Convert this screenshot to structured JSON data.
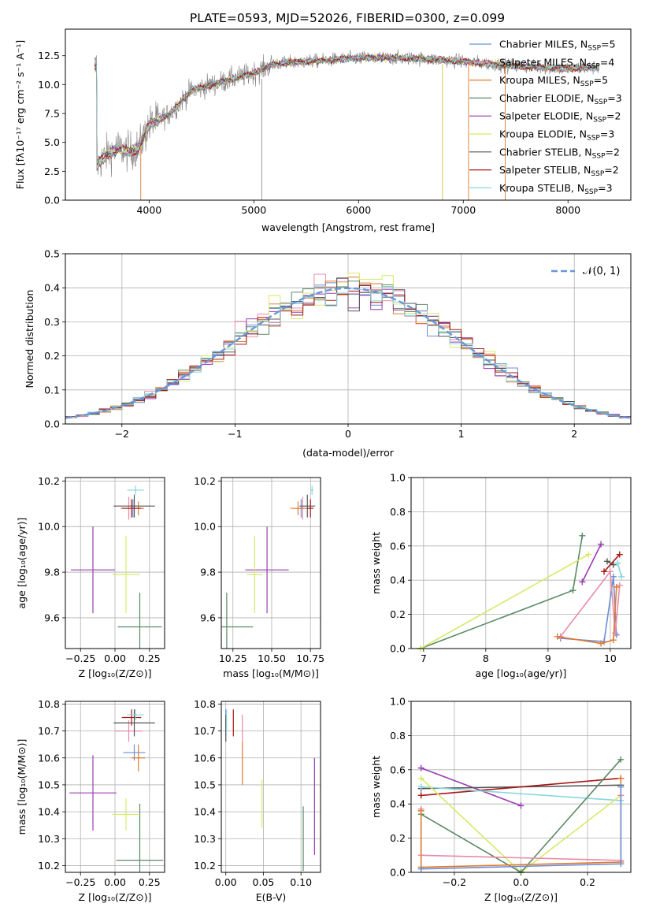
{
  "title": "PLATE=0593, MJD=52026, FIBERID=0300, z=0.099",
  "colors": {
    "Chabrier MILES": "#6b8fd6",
    "Salpeter MILES": "#e88aa8",
    "Kroupa MILES": "#e07a2e",
    "Chabrier ELODIE": "#5a8a66",
    "Salpeter ELODIE": "#9b3db3",
    "Kroupa ELODIE": "#d8e86a",
    "Chabrier STELIB": "#555555",
    "Salpeter STELIB": "#a81818",
    "Kroupa STELIB": "#86d6dc",
    "data": "#808080",
    "gaussian": "#6a96dc"
  },
  "chart_data": [
    {
      "id": "spectrum",
      "type": "line",
      "xlabel": "wavelength [Angstrom, rest frame]",
      "ylabel": "Flux [fλ10⁻¹⁷ erg cm⁻² s⁻¹ A⁻¹]",
      "xlim": [
        3200,
        8600
      ],
      "ylim": [
        0,
        14.8
      ],
      "xticks": [
        "4000",
        "5000",
        "6000",
        "7000",
        "8000"
      ],
      "yticks": [
        "0.0",
        "2.5",
        "5.0",
        "7.5",
        "10.0",
        "12.5"
      ],
      "grid": false,
      "legend_position": "upper right",
      "legend": [
        {
          "label": "Chabrier MILES",
          "sub": "5"
        },
        {
          "label": "Salpeter MILES",
          "sub": "4"
        },
        {
          "label": "Kroupa MILES",
          "sub": "5"
        },
        {
          "label": "Chabrier ELODIE",
          "sub": "3"
        },
        {
          "label": "Salpeter ELODIE",
          "sub": "2"
        },
        {
          "label": "Kroupa ELODIE",
          "sub": "3"
        },
        {
          "label": "Chabrier STELIB",
          "sub": "2"
        },
        {
          "label": "Salpeter STELIB",
          "sub": "2"
        },
        {
          "label": "Kroupa STELIB",
          "sub": "3"
        }
      ],
      "continuum": [
        [
          3500,
          3.0
        ],
        [
          3600,
          4.0
        ],
        [
          3700,
          4.5
        ],
        [
          3800,
          4.2
        ],
        [
          3900,
          4.5
        ],
        [
          4000,
          6.5
        ],
        [
          4200,
          7.5
        ],
        [
          4400,
          9.5
        ],
        [
          4600,
          10.0
        ],
        [
          4800,
          10.5
        ],
        [
          5000,
          11.0
        ],
        [
          5200,
          11.8
        ],
        [
          5500,
          12.0
        ],
        [
          6000,
          12.3
        ],
        [
          6500,
          12.3
        ],
        [
          7000,
          12.0
        ],
        [
          7500,
          11.6
        ],
        [
          8000,
          11.4
        ],
        [
          8300,
          11.5
        ]
      ],
      "spikes": [
        {
          "x": 7400,
          "from": 0,
          "to": 12.0
        },
        {
          "x": 7050,
          "from": 0,
          "to": 12.0
        },
        {
          "x": 6800,
          "from": 0,
          "to": 11.8
        },
        {
          "x": 3920,
          "from": 0,
          "to": 4.5
        }
      ]
    },
    {
      "id": "residuals",
      "type": "histogram",
      "xlabel": "(data-model)/error",
      "ylabel": "Normed distribution",
      "xlim": [
        -2.5,
        2.5
      ],
      "ylim": [
        0,
        0.5
      ],
      "xticks": [
        "−2",
        "−1",
        "0",
        "1",
        "2"
      ],
      "yticks": [
        "0.0",
        "0.1",
        "0.2",
        "0.3",
        "0.4",
        "0.5"
      ],
      "grid": true,
      "legend_position": "upper right",
      "legend": [
        "N(0,1)"
      ],
      "bins": 50,
      "gaussian": {
        "mean": 0,
        "sigma": 1
      },
      "series": [
        {
          "name": "Chabrier MILES"
        },
        {
          "name": "Salpeter MILES"
        },
        {
          "name": "Kroupa MILES"
        },
        {
          "name": "Chabrier ELODIE"
        },
        {
          "name": "Salpeter ELODIE"
        },
        {
          "name": "Kroupa ELODIE"
        },
        {
          "name": "Chabrier STELIB"
        },
        {
          "name": "Salpeter STELIB"
        },
        {
          "name": "Kroupa STELIB"
        }
      ]
    },
    {
      "id": "age_vs_Z",
      "type": "scatter",
      "xlabel": "Z [log₁₀(Z/Z⊙)]",
      "ylabel": "age  [log₁₀(age/yr)]",
      "xlim": [
        -0.36,
        0.36
      ],
      "ylim": [
        9.465,
        10.215
      ],
      "xticks": [
        {
          "v": -0.25,
          "t": "−0.25"
        },
        {
          "v": 0,
          "t": "0.00"
        },
        {
          "v": 0.25,
          "t": "0.25"
        }
      ],
      "yticks": [
        {
          "v": 9.6,
          "t": "9.6"
        },
        {
          "v": 9.8,
          "t": "9.8"
        },
        {
          "v": 10.0,
          "t": "10.0"
        },
        {
          "v": 10.2,
          "t": "10.2"
        }
      ],
      "grid": true,
      "points": [
        {
          "s": "Chabrier MILES",
          "x": 0.13,
          "y": 10.08,
          "ex": 0.07,
          "ey": 0.04
        },
        {
          "s": "Salpeter MILES",
          "x": 0.1,
          "y": 10.08,
          "ex": 0.06,
          "ey": 0.05
        },
        {
          "s": "Kroupa MILES",
          "x": 0.17,
          "y": 10.08,
          "ex": 0.04,
          "ey": 0.03
        },
        {
          "s": "Chabrier ELODIE",
          "x": 0.18,
          "y": 9.56,
          "ex": 0.16,
          "ey": 0.15
        },
        {
          "s": "Salpeter ELODIE",
          "x": -0.16,
          "y": 9.81,
          "ex": 0.16,
          "ey": 0.19
        },
        {
          "s": "Kroupa ELODIE",
          "x": 0.08,
          "y": 9.79,
          "ex": 0.1,
          "ey": 0.17
        },
        {
          "s": "Chabrier STELIB",
          "x": 0.14,
          "y": 10.09,
          "ex": 0.15,
          "ey": 0.05
        },
        {
          "s": "Salpeter STELIB",
          "x": 0.12,
          "y": 10.08,
          "ex": 0.07,
          "ey": 0.04
        },
        {
          "s": "Kroupa STELIB",
          "x": 0.15,
          "y": 10.16,
          "ex": 0.06,
          "ey": 0.02
        }
      ]
    },
    {
      "id": "age_vs_mass",
      "type": "scatter",
      "xlabel": "mass [log₁₀(M/M⊙)]",
      "ylabel": "",
      "xlim": [
        10.175,
        10.815
      ],
      "ylim": [
        9.465,
        10.215
      ],
      "xticks": [
        {
          "v": 10.25,
          "t": "10.25"
        },
        {
          "v": 10.5,
          "t": "10.50"
        },
        {
          "v": 10.75,
          "t": "10.75"
        }
      ],
      "yticks": [
        {
          "v": 9.6,
          "t": "9.6"
        },
        {
          "v": 9.8,
          "t": "9.8"
        },
        {
          "v": 10.0,
          "t": "10.0"
        },
        {
          "v": 10.2,
          "t": "10.2"
        }
      ],
      "grid": true,
      "points": [
        {
          "s": "Chabrier MILES",
          "x": 10.69,
          "y": 10.08,
          "ex": 0.02,
          "ey": 0.04
        },
        {
          "s": "Salpeter MILES",
          "x": 10.7,
          "y": 10.08,
          "ex": 0.05,
          "ey": 0.05
        },
        {
          "s": "Kroupa MILES",
          "x": 10.67,
          "y": 10.08,
          "ex": 0.05,
          "ey": 0.03
        },
        {
          "s": "Chabrier ELODIE",
          "x": 10.21,
          "y": 9.56,
          "ex": 0.17,
          "ey": 0.15
        },
        {
          "s": "Salpeter ELODIE",
          "x": 10.47,
          "y": 9.81,
          "ex": 0.14,
          "ey": 0.19
        },
        {
          "s": "Kroupa ELODIE",
          "x": 10.39,
          "y": 9.79,
          "ex": 0.05,
          "ey": 0.17
        },
        {
          "s": "Chabrier STELIB",
          "x": 10.73,
          "y": 10.09,
          "ex": 0.05,
          "ey": 0.05
        },
        {
          "s": "Salpeter STELIB",
          "x": 10.75,
          "y": 10.08,
          "ex": 0.02,
          "ey": 0.04
        },
        {
          "s": "Kroupa STELIB",
          "x": 10.76,
          "y": 10.16,
          "ex": 0.01,
          "ey": 0.02
        }
      ]
    },
    {
      "id": "weight_vs_age",
      "type": "line",
      "xlabel": "age  [log₁₀(age/yr)]",
      "ylabel": "mass weight",
      "xlim": [
        6.8,
        10.33
      ],
      "ylim": [
        0,
        1
      ],
      "xticks": [
        {
          "v": 7,
          "t": "7"
        },
        {
          "v": 8,
          "t": "8"
        },
        {
          "v": 9,
          "t": "9"
        },
        {
          "v": 10,
          "t": "10"
        }
      ],
      "yticks": [
        {
          "v": 0,
          "t": "0.0"
        },
        {
          "v": 0.2,
          "t": "0.2"
        },
        {
          "v": 0.4,
          "t": "0.4"
        },
        {
          "v": 0.6,
          "t": "0.6"
        },
        {
          "v": 0.8,
          "t": "0.8"
        },
        {
          "v": 1,
          "t": "1.0"
        }
      ],
      "grid": true,
      "series": [
        {
          "name": "Chabrier ELODIE",
          "points": [
            [
              6.95,
              0.0
            ],
            [
              9.4,
              0.34
            ],
            [
              9.55,
              0.66
            ]
          ]
        },
        {
          "name": "Kroupa ELODIE",
          "points": [
            [
              6.95,
              0.0
            ],
            [
              9.65,
              0.55
            ]
          ]
        },
        {
          "name": "Salpeter ELODIE",
          "points": [
            [
              9.55,
              0.39
            ],
            [
              9.85,
              0.61
            ]
          ]
        },
        {
          "name": "Chabrier MILES",
          "points": [
            [
              9.2,
              0.06
            ],
            [
              9.9,
              0.04
            ],
            [
              10.05,
              0.42
            ],
            [
              10.1,
              0.08
            ]
          ]
        },
        {
          "name": "Salpeter MILES",
          "points": [
            [
              9.2,
              0.07
            ],
            [
              10.0,
              0.45
            ],
            [
              10.08,
              0.09
            ],
            [
              10.15,
              0.37
            ]
          ]
        },
        {
          "name": "Kroupa MILES",
          "points": [
            [
              9.15,
              0.07
            ],
            [
              9.85,
              0.03
            ],
            [
              10.05,
              0.05
            ],
            [
              10.1,
              0.36
            ]
          ]
        },
        {
          "name": "Chabrier STELIB",
          "points": [
            [
              9.95,
              0.51
            ],
            [
              10.05,
              0.49
            ]
          ]
        },
        {
          "name": "Salpeter STELIB",
          "points": [
            [
              9.9,
              0.45
            ],
            [
              10.15,
              0.55
            ]
          ]
        },
        {
          "name": "Kroupa STELIB",
          "points": [
            [
              10.12,
              0.5
            ],
            [
              10.18,
              0.42
            ]
          ]
        }
      ]
    },
    {
      "id": "mass_vs_Z",
      "type": "scatter",
      "xlabel": "Z [log₁₀(Z/Z⊙)]",
      "ylabel": "mass [log₁₀(M/M⊙)]",
      "xlim": [
        -0.36,
        0.36
      ],
      "ylim": [
        10.175,
        10.81
      ],
      "xticks": [
        {
          "v": -0.25,
          "t": "−0.25"
        },
        {
          "v": 0,
          "t": "0.00"
        },
        {
          "v": 0.25,
          "t": "0.25"
        }
      ],
      "yticks": [
        {
          "v": 10.2,
          "t": "10.2"
        },
        {
          "v": 10.3,
          "t": "10.3"
        },
        {
          "v": 10.4,
          "t": "10.4"
        },
        {
          "v": 10.5,
          "t": "10.5"
        },
        {
          "v": 10.6,
          "t": "10.6"
        },
        {
          "v": 10.7,
          "t": "10.7"
        },
        {
          "v": 10.8,
          "t": "10.8"
        }
      ],
      "grid": true,
      "points": [
        {
          "s": "Chabrier MILES",
          "x": 0.14,
          "y": 10.62,
          "ex": 0.08,
          "ey": 0.03
        },
        {
          "s": "Salpeter MILES",
          "x": 0.1,
          "y": 10.7,
          "ex": 0.1,
          "ey": 0.04
        },
        {
          "s": "Kroupa MILES",
          "x": 0.17,
          "y": 10.6,
          "ex": 0.05,
          "ey": 0.05
        },
        {
          "s": "Chabrier ELODIE",
          "x": 0.18,
          "y": 10.22,
          "ex": 0.17,
          "ey": 0.21
        },
        {
          "s": "Salpeter ELODIE",
          "x": -0.16,
          "y": 10.47,
          "ex": 0.17,
          "ey": 0.14
        },
        {
          "s": "Kroupa ELODIE",
          "x": 0.08,
          "y": 10.39,
          "ex": 0.1,
          "ey": 0.06
        },
        {
          "s": "Chabrier STELIB",
          "x": 0.14,
          "y": 10.73,
          "ex": 0.15,
          "ey": 0.05
        },
        {
          "s": "Salpeter STELIB",
          "x": 0.12,
          "y": 10.75,
          "ex": 0.07,
          "ey": 0.03
        },
        {
          "s": "Kroupa STELIB",
          "x": 0.15,
          "y": 10.76,
          "ex": 0.06,
          "ey": 0.02
        }
      ]
    },
    {
      "id": "mass_vs_ebv",
      "type": "scatter",
      "xlabel": "E(B-V)",
      "ylabel": "",
      "xlim": [
        -0.006,
        0.126
      ],
      "ylim": [
        10.175,
        10.81
      ],
      "xticks": [
        {
          "v": 0,
          "t": "0.00"
        },
        {
          "v": 0.05,
          "t": "0.05"
        },
        {
          "v": 0.1,
          "t": "0.10"
        }
      ],
      "yticks": [
        {
          "v": 10.2,
          "t": "10.2"
        },
        {
          "v": 10.3,
          "t": "10.3"
        },
        {
          "v": 10.4,
          "t": "10.4"
        },
        {
          "v": 10.5,
          "t": "10.5"
        },
        {
          "v": 10.6,
          "t": "10.6"
        },
        {
          "v": 10.7,
          "t": "10.7"
        },
        {
          "v": 10.8,
          "t": "10.8"
        }
      ],
      "grid": true,
      "points": [
        {
          "s": "Chabrier MILES",
          "x": 0.0,
          "y": 10.73,
          "ex": 0,
          "ey": 0.05
        },
        {
          "s": "Salpeter MILES",
          "x": 0.022,
          "y": 10.71,
          "ex": 0,
          "ey": 0.05
        },
        {
          "s": "Kroupa MILES",
          "x": 0.022,
          "y": 10.58,
          "ex": 0,
          "ey": 0.08
        },
        {
          "s": "Chabrier ELODIE",
          "x": 0.103,
          "y": 10.3,
          "ex": 0,
          "ey": 0.12
        },
        {
          "s": "Salpeter ELODIE",
          "x": 0.118,
          "y": 10.42,
          "ex": 0,
          "ey": 0.18
        },
        {
          "s": "Kroupa ELODIE",
          "x": 0.048,
          "y": 10.43,
          "ex": 0,
          "ey": 0.09
        },
        {
          "s": "Chabrier STELIB",
          "x": 0.0,
          "y": 10.71,
          "ex": 0,
          "ey": 0.05
        },
        {
          "s": "Salpeter STELIB",
          "x": 0.01,
          "y": 10.73,
          "ex": 0,
          "ey": 0.05
        },
        {
          "s": "Kroupa STELIB",
          "x": 0.001,
          "y": 10.74,
          "ex": 0,
          "ey": 0.04
        }
      ]
    },
    {
      "id": "weight_vs_Z",
      "type": "line",
      "xlabel": "Z [log₁₀(Z/Z⊙)]",
      "ylabel": "mass weight",
      "xlim": [
        -0.33,
        0.33
      ],
      "ylim": [
        0,
        1
      ],
      "xticks": [
        {
          "v": -0.2,
          "t": "−0.2"
        },
        {
          "v": 0,
          "t": "0.0"
        },
        {
          "v": 0.2,
          "t": "0.2"
        }
      ],
      "yticks": [
        {
          "v": 0,
          "t": "0.0"
        },
        {
          "v": 0.2,
          "t": "0.2"
        },
        {
          "v": 0.4,
          "t": "0.4"
        },
        {
          "v": 0.6,
          "t": "0.6"
        },
        {
          "v": 0.8,
          "t": "0.8"
        },
        {
          "v": 1,
          "t": "1.0"
        }
      ],
      "grid": true,
      "series": [
        {
          "name": "Salpeter ELODIE",
          "points": [
            [
              -0.3,
              0.61
            ],
            [
              0.0,
              0.39
            ]
          ]
        },
        {
          "name": "Chabrier STELIB",
          "points": [
            [
              -0.3,
              0.49
            ],
            [
              0.3,
              0.51
            ]
          ]
        },
        {
          "name": "Salpeter STELIB",
          "points": [
            [
              -0.3,
              0.45
            ],
            [
              0.3,
              0.55
            ]
          ]
        },
        {
          "name": "Kroupa STELIB",
          "points": [
            [
              -0.3,
              0.5
            ],
            [
              0.3,
              0.42
            ],
            [
              0.3,
              0.07
            ]
          ]
        },
        {
          "name": "Kroupa ELODIE",
          "points": [
            [
              -0.3,
              0.55
            ],
            [
              0.0,
              0.0
            ],
            [
              0.3,
              0.45
            ]
          ]
        },
        {
          "name": "Chabrier ELODIE",
          "points": [
            [
              -0.3,
              0.34
            ],
            [
              0.0,
              0.0
            ],
            [
              0.3,
              0.66
            ]
          ]
        },
        {
          "name": "Salpeter MILES",
          "points": [
            [
              -0.3,
              0.37
            ],
            [
              -0.3,
              0.1
            ],
            [
              0.3,
              0.07
            ],
            [
              0.3,
              0.45
            ]
          ]
        },
        {
          "name": "Kroupa MILES",
          "points": [
            [
              -0.3,
              0.36
            ],
            [
              -0.3,
              0.03
            ],
            [
              0.3,
              0.06
            ],
            [
              0.3,
              0.55
            ]
          ]
        },
        {
          "name": "Chabrier MILES",
          "points": [
            [
              -0.3,
              0.02
            ],
            [
              0.3,
              0.05
            ],
            [
              0.3,
              0.5
            ]
          ]
        }
      ]
    }
  ]
}
